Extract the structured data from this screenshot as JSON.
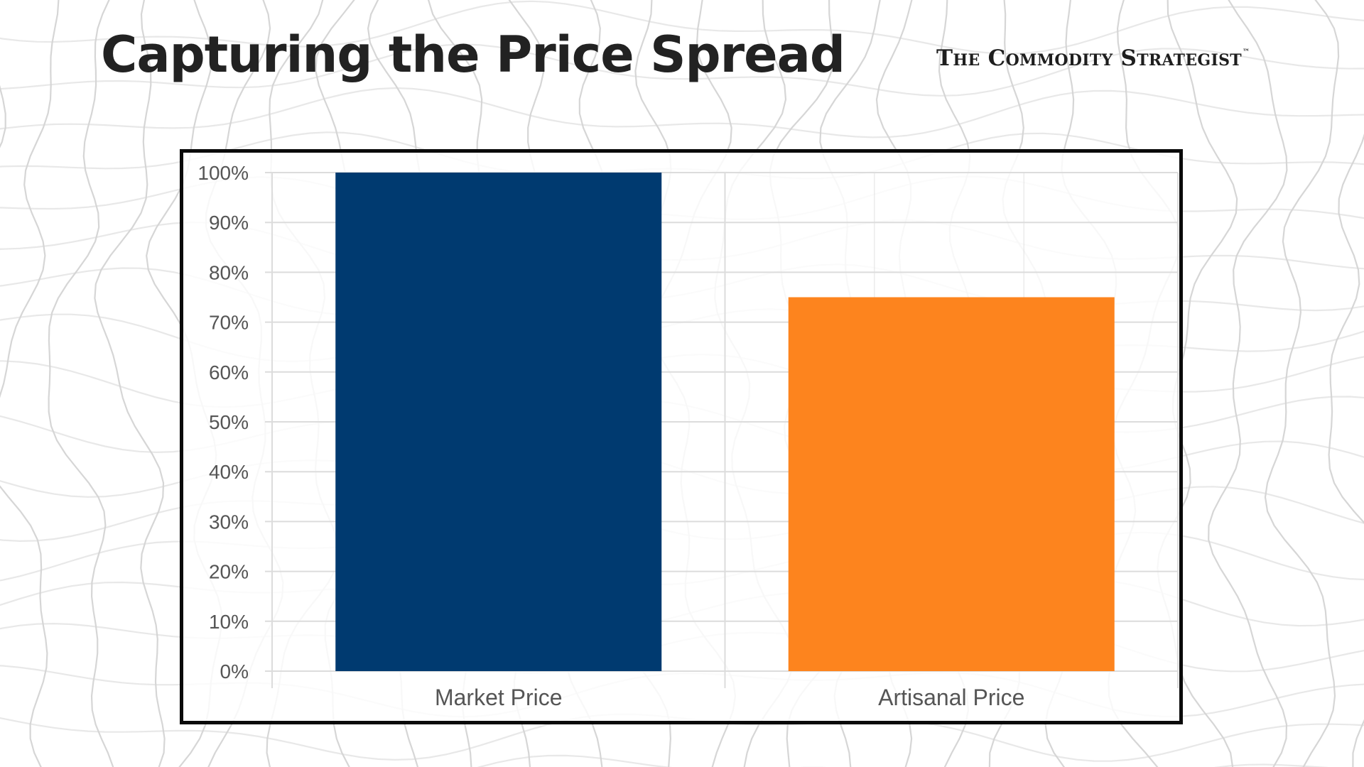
{
  "slide": {
    "title": "Capturing the Price Spread",
    "brand": "The Commodity Strategist",
    "brand_mark": "™"
  },
  "colors": {
    "background": "#ffffff",
    "topo_lines": "#d6d6d6",
    "title_text": "#222222",
    "frame_border": "#0a0a0a",
    "gridlines": "#dcdcdc",
    "axis_text": "#555555"
  },
  "chart_data": {
    "type": "bar",
    "categories": [
      "Market Price",
      "Artisanal Price"
    ],
    "values": [
      100,
      75
    ],
    "bar_colors": [
      "#003a70",
      "#fd841e"
    ],
    "ylim": [
      0,
      100
    ],
    "yticks": [
      0,
      10,
      20,
      30,
      40,
      50,
      60,
      70,
      80,
      90,
      100
    ],
    "ytick_suffix": "%",
    "grid": true,
    "legend": "none",
    "title": "",
    "xlabel": "",
    "ylabel": ""
  }
}
